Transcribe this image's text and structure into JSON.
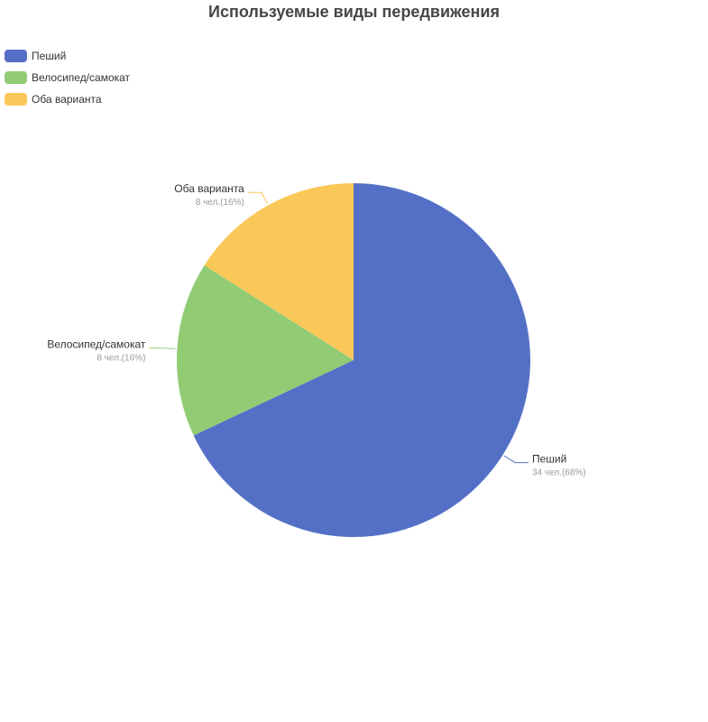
{
  "chart_data": {
    "type": "pie",
    "title": "Используемые виды передвижения",
    "legend_position": "top-left",
    "slices": [
      {
        "name": "Пеший",
        "value": 34,
        "label": "34 чел.(68%)",
        "color": "#5470c6"
      },
      {
        "name": "Велосипед/самокат",
        "value": 8,
        "label": "8 чел.(16%)",
        "color": "#91cc75"
      },
      {
        "name": "Оба варианта",
        "value": 8,
        "label": "8 чел.(16%)",
        "color": "#fac858"
      }
    ]
  }
}
